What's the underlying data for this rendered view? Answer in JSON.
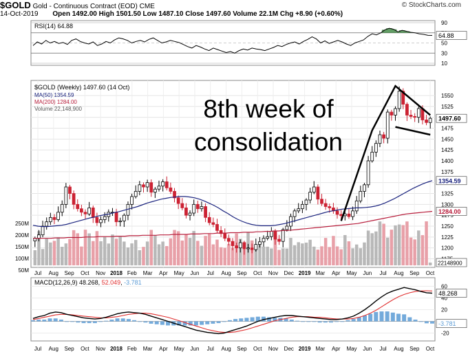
{
  "header": {
    "ticker": "$GOLD",
    "name": "Gold - Continuous Contract (EOD)",
    "exchange": "CME",
    "date": "14-Oct-2019",
    "quote": "Open 1492.00  High 1501.50  Low 1487.10  Close 1497.60  Volume 22.1M  Chg +8.90 (+0.60%)",
    "watermark": "© StockCharts.com"
  },
  "colors": {
    "up": "#000000",
    "down": "#cc2233",
    "ma50": "#1a237e",
    "ma200": "#b71c3a",
    "volume": "#b8b8b8",
    "volume_down": "#e8a0a8",
    "macd": "#000000",
    "signal": "#e03030",
    "hist": "#5b9bd5",
    "rsi_fill": "#2e7d32",
    "annotation": "#000000"
  },
  "annotation": {
    "line1": "8th week of",
    "line2": "consolidation"
  },
  "chart_data": [
    {
      "type": "line",
      "panel": "rsi",
      "legend": "RSI(14) 64.88",
      "last_value": "64.88",
      "ylim": [
        10,
        90
      ],
      "y_ticks": [
        "90",
        "70",
        "50",
        "30",
        "10"
      ],
      "series": [
        {
          "name": "RSI(14)",
          "values": [
            45,
            52,
            48,
            55,
            50,
            53,
            49,
            51,
            47,
            55,
            58,
            53,
            50,
            48,
            52,
            45,
            48,
            53,
            50,
            56,
            60,
            58,
            55,
            50,
            53,
            55,
            52,
            57,
            60,
            55,
            50,
            52,
            55,
            53,
            51,
            47,
            43,
            40,
            45,
            42,
            38,
            35,
            40,
            37,
            34,
            31,
            33,
            30,
            35,
            38,
            36,
            40,
            38,
            37,
            35,
            38,
            41,
            45,
            43,
            47,
            50,
            52,
            48,
            53,
            57,
            62,
            58,
            50,
            54,
            49,
            52,
            55,
            52,
            48,
            45,
            50,
            53,
            56,
            63,
            68,
            66,
            70,
            76,
            79,
            77,
            72,
            75,
            73,
            71,
            70,
            68,
            67,
            65,
            64.88
          ]
        }
      ]
    },
    {
      "type": "candlestick",
      "panel": "price",
      "title": "$GOLD (Weekly) 1497.60 (14 Oct)",
      "legend": [
        {
          "name": "MA(50)",
          "value": "1354.59"
        },
        {
          "name": "MA(200)",
          "value": "1284.00"
        },
        {
          "name": "Volume",
          "value": "22,148,900"
        }
      ],
      "ylim": [
        1160,
        1580
      ],
      "y_ticks": [
        "1550",
        "1525",
        "1500",
        "1475",
        "1450",
        "1425",
        "1400",
        "1375",
        "1350",
        "1325",
        "1300",
        "1275",
        "1250",
        "1225",
        "1200",
        "1175"
      ],
      "x_labels": [
        "Jul",
        "Aug",
        "Sep",
        "Oct",
        "Nov",
        "2018",
        "Feb",
        "Mar",
        "Apr",
        "May",
        "Jun",
        "Jul",
        "Aug",
        "Sep",
        "Oct",
        "Nov",
        "Dec",
        "2019",
        "Mar",
        "Apr",
        "May",
        "Jun",
        "Jul",
        "Aug",
        "Sep",
        "Oct"
      ],
      "close": [
        1222,
        1230,
        1250,
        1260,
        1270,
        1265,
        1282,
        1300,
        1340,
        1325,
        1300,
        1290,
        1282,
        1278,
        1292,
        1270,
        1258,
        1265,
        1272,
        1282,
        1282,
        1260,
        1262,
        1275,
        1300,
        1318,
        1330,
        1345,
        1340,
        1350,
        1328,
        1335,
        1342,
        1352,
        1338,
        1330,
        1315,
        1302,
        1292,
        1275,
        1280,
        1300,
        1290,
        1295,
        1270,
        1258,
        1254,
        1240,
        1233,
        1222,
        1215,
        1205,
        1200,
        1212,
        1198,
        1200,
        1196,
        1208,
        1214,
        1222,
        1226,
        1238,
        1220,
        1215,
        1242,
        1250,
        1272,
        1285,
        1290,
        1300,
        1310,
        1328,
        1340,
        1312,
        1302,
        1295,
        1292,
        1285,
        1277,
        1274,
        1278,
        1272,
        1285,
        1308,
        1330,
        1345,
        1400,
        1420,
        1440,
        1460,
        1452,
        1512,
        1505,
        1520,
        1560,
        1530,
        1505,
        1502,
        1500,
        1520,
        1494,
        1488,
        1497.6
      ],
      "ma50": [
        1252,
        1250,
        1249,
        1249,
        1250,
        1251,
        1252,
        1254,
        1257,
        1260,
        1263,
        1266,
        1269,
        1271,
        1274,
        1276,
        1278,
        1281,
        1283,
        1286,
        1289,
        1292,
        1295,
        1299,
        1303,
        1306,
        1309,
        1312,
        1314,
        1316,
        1317,
        1318,
        1318,
        1317,
        1315,
        1312,
        1308,
        1303,
        1298,
        1292,
        1285,
        1279,
        1272,
        1266,
        1261,
        1257,
        1254,
        1252,
        1251,
        1251,
        1251,
        1252,
        1254,
        1256,
        1259,
        1262,
        1265,
        1268,
        1271,
        1274,
        1277,
        1280,
        1283,
        1285,
        1287,
        1289,
        1290,
        1291,
        1292,
        1292,
        1293,
        1294,
        1296,
        1299,
        1303,
        1308,
        1313,
        1319,
        1325,
        1331,
        1337,
        1342,
        1347,
        1351,
        1354.59
      ],
      "ma200": [
        1222,
        1222,
        1222,
        1222,
        1222,
        1223,
        1223,
        1223,
        1224,
        1224,
        1224,
        1224,
        1225,
        1225,
        1225,
        1226,
        1226,
        1226,
        1226,
        1227,
        1227,
        1227,
        1228,
        1228,
        1228,
        1229,
        1229,
        1229,
        1229,
        1230,
        1230,
        1230,
        1231,
        1231,
        1231,
        1231,
        1232,
        1232,
        1232,
        1233,
        1233,
        1233,
        1234,
        1234,
        1234,
        1235,
        1235,
        1235,
        1236,
        1236,
        1236,
        1237,
        1237,
        1238,
        1238,
        1239,
        1239,
        1240,
        1240,
        1241,
        1242,
        1243,
        1244,
        1245,
        1246,
        1247,
        1248,
        1249,
        1250,
        1251,
        1252,
        1253,
        1254,
        1255,
        1256,
        1258,
        1260,
        1262,
        1264,
        1266,
        1268,
        1270,
        1272,
        1274,
        1276,
        1278,
        1279,
        1280,
        1281,
        1282,
        1283,
        1284.0
      ],
      "volume_axis": [
        "250M",
        "200M",
        "150M",
        "100M",
        "50M"
      ],
      "volume_last": "22148900"
    },
    {
      "type": "line",
      "panel": "macd",
      "legend": "MACD(12,26,9) 48.268, 52.049, -3.781",
      "macd_label": "MACD(12,26,9)",
      "macd_value": "48.268",
      "signal_value": "52.049",
      "hist_value": "-3.781",
      "ylim": [
        -30,
        70
      ],
      "y_ticks": [
        "60",
        "40",
        "20",
        "0",
        "-20"
      ],
      "series": [
        {
          "name": "MACD",
          "values": [
            5,
            8,
            10,
            14,
            16,
            15,
            12,
            10,
            8,
            6,
            5,
            4,
            5,
            7,
            10,
            13,
            15,
            16,
            15,
            14,
            12,
            9,
            6,
            3,
            0,
            -3,
            -6,
            -9,
            -12,
            -15,
            -17,
            -19,
            -20,
            -21,
            -20,
            -17,
            -14,
            -11,
            -8,
            -4,
            0,
            3,
            5,
            7,
            9,
            10,
            10,
            9,
            8,
            7,
            6,
            5,
            4,
            3,
            3,
            4,
            6,
            9,
            14,
            20,
            27,
            35,
            42,
            48,
            52,
            55,
            58,
            56,
            54,
            51,
            49,
            48.268
          ]
        },
        {
          "name": "Signal",
          "values": [
            3,
            5,
            7,
            9,
            11,
            12,
            12,
            11,
            10,
            9,
            8,
            7,
            6,
            6,
            7,
            8,
            10,
            12,
            13,
            14,
            14,
            13,
            11,
            9,
            7,
            4,
            1,
            -2,
            -5,
            -8,
            -11,
            -14,
            -16,
            -18,
            -19,
            -19,
            -18,
            -16,
            -14,
            -11,
            -8,
            -5,
            -2,
            1,
            3,
            5,
            7,
            8,
            8,
            8,
            7,
            7,
            6,
            5,
            4,
            4,
            4,
            5,
            7,
            10,
            14,
            19,
            25,
            31,
            37,
            42,
            46,
            49,
            51,
            52,
            52.3,
            52.049
          ]
        }
      ]
    }
  ]
}
